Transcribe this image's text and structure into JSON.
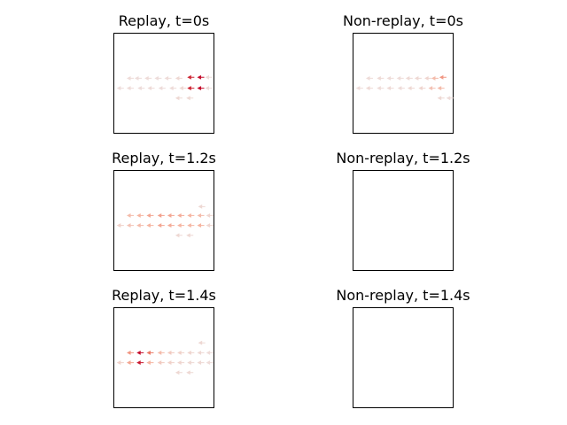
{
  "chart_data": [
    {
      "type": "scatter",
      "title": "Replay, t=0s",
      "marker": "small arrow",
      "colormap": "white-to-red by intensity",
      "xlabel": "",
      "ylabel": "",
      "xlim": [
        0,
        1
      ],
      "ylim": [
        0,
        1
      ],
      "grid": false,
      "points": [
        {
          "x": 0.17,
          "y": 0.55,
          "v": 0.08
        },
        {
          "x": 0.25,
          "y": 0.55,
          "v": 0.07
        },
        {
          "x": 0.35,
          "y": 0.55,
          "v": 0.08
        },
        {
          "x": 0.45,
          "y": 0.55,
          "v": 0.07
        },
        {
          "x": 0.55,
          "y": 0.55,
          "v": 0.08
        },
        {
          "x": 0.66,
          "y": 0.55,
          "v": 0.1
        },
        {
          "x": 0.78,
          "y": 0.56,
          "v": 0.85
        },
        {
          "x": 0.88,
          "y": 0.56,
          "v": 0.95
        },
        {
          "x": 0.07,
          "y": 0.45,
          "v": 0.07
        },
        {
          "x": 0.17,
          "y": 0.45,
          "v": 0.08
        },
        {
          "x": 0.28,
          "y": 0.45,
          "v": 0.07
        },
        {
          "x": 0.38,
          "y": 0.45,
          "v": 0.08
        },
        {
          "x": 0.49,
          "y": 0.45,
          "v": 0.07
        },
        {
          "x": 0.6,
          "y": 0.45,
          "v": 0.08
        },
        {
          "x": 0.7,
          "y": 0.45,
          "v": 0.1
        },
        {
          "x": 0.78,
          "y": 0.45,
          "v": 0.85
        },
        {
          "x": 0.88,
          "y": 0.45,
          "v": 0.95
        },
        {
          "x": 0.96,
          "y": 0.56,
          "v": 0.08
        },
        {
          "x": 0.96,
          "y": 0.45,
          "v": 0.08
        },
        {
          "x": 0.66,
          "y": 0.35,
          "v": 0.1
        },
        {
          "x": 0.77,
          "y": 0.35,
          "v": 0.1
        }
      ]
    },
    {
      "type": "scatter",
      "title": "Non-replay, t=0s",
      "marker": "small arrow",
      "colormap": "white-to-red by intensity",
      "xlabel": "",
      "ylabel": "",
      "xlim": [
        0,
        1
      ],
      "ylim": [
        0,
        1
      ],
      "grid": false,
      "points": [
        {
          "x": 0.17,
          "y": 0.55,
          "v": 0.08
        },
        {
          "x": 0.28,
          "y": 0.55,
          "v": 0.09
        },
        {
          "x": 0.38,
          "y": 0.55,
          "v": 0.08
        },
        {
          "x": 0.48,
          "y": 0.55,
          "v": 0.08
        },
        {
          "x": 0.57,
          "y": 0.55,
          "v": 0.09
        },
        {
          "x": 0.66,
          "y": 0.55,
          "v": 0.1
        },
        {
          "x": 0.76,
          "y": 0.55,
          "v": 0.12
        },
        {
          "x": 0.83,
          "y": 0.55,
          "v": 0.3
        },
        {
          "x": 0.91,
          "y": 0.56,
          "v": 0.45
        },
        {
          "x": 0.07,
          "y": 0.45,
          "v": 0.08
        },
        {
          "x": 0.17,
          "y": 0.45,
          "v": 0.09
        },
        {
          "x": 0.28,
          "y": 0.45,
          "v": 0.08
        },
        {
          "x": 0.38,
          "y": 0.45,
          "v": 0.09
        },
        {
          "x": 0.49,
          "y": 0.45,
          "v": 0.08
        },
        {
          "x": 0.59,
          "y": 0.45,
          "v": 0.1
        },
        {
          "x": 0.7,
          "y": 0.45,
          "v": 0.12
        },
        {
          "x": 0.8,
          "y": 0.45,
          "v": 0.25
        },
        {
          "x": 0.89,
          "y": 0.45,
          "v": 0.3
        },
        {
          "x": 0.89,
          "y": 0.35,
          "v": 0.1
        },
        {
          "x": 0.98,
          "y": 0.35,
          "v": 0.08
        }
      ]
    },
    {
      "type": "scatter",
      "title": "Replay, t=1.2s",
      "marker": "small arrow",
      "colormap": "white-to-red by intensity",
      "xlabel": "",
      "ylabel": "",
      "xlim": [
        0,
        1
      ],
      "ylim": [
        0,
        1
      ],
      "grid": false,
      "points": [
        {
          "x": 0.89,
          "y": 0.64,
          "v": 0.1
        },
        {
          "x": 0.17,
          "y": 0.55,
          "v": 0.3
        },
        {
          "x": 0.27,
          "y": 0.55,
          "v": 0.35
        },
        {
          "x": 0.37,
          "y": 0.55,
          "v": 0.4
        },
        {
          "x": 0.48,
          "y": 0.55,
          "v": 0.42
        },
        {
          "x": 0.58,
          "y": 0.55,
          "v": 0.4
        },
        {
          "x": 0.68,
          "y": 0.55,
          "v": 0.38
        },
        {
          "x": 0.78,
          "y": 0.55,
          "v": 0.35
        },
        {
          "x": 0.88,
          "y": 0.55,
          "v": 0.3
        },
        {
          "x": 0.97,
          "y": 0.55,
          "v": 0.12
        },
        {
          "x": 0.07,
          "y": 0.45,
          "v": 0.15
        },
        {
          "x": 0.17,
          "y": 0.45,
          "v": 0.25
        },
        {
          "x": 0.27,
          "y": 0.45,
          "v": 0.3
        },
        {
          "x": 0.37,
          "y": 0.45,
          "v": 0.35
        },
        {
          "x": 0.48,
          "y": 0.45,
          "v": 0.4
        },
        {
          "x": 0.58,
          "y": 0.45,
          "v": 0.38
        },
        {
          "x": 0.68,
          "y": 0.45,
          "v": 0.35
        },
        {
          "x": 0.78,
          "y": 0.45,
          "v": 0.33
        },
        {
          "x": 0.88,
          "y": 0.45,
          "v": 0.35
        },
        {
          "x": 0.97,
          "y": 0.45,
          "v": 0.12
        },
        {
          "x": 0.66,
          "y": 0.35,
          "v": 0.1
        },
        {
          "x": 0.77,
          "y": 0.35,
          "v": 0.1
        }
      ]
    },
    {
      "type": "scatter",
      "title": "Non-replay, t=1.2s",
      "xlabel": "",
      "ylabel": "",
      "xlim": [
        0,
        1
      ],
      "ylim": [
        0,
        1
      ],
      "grid": false,
      "points": []
    },
    {
      "type": "scatter",
      "title": "Replay, t=1.4s",
      "marker": "small arrow",
      "colormap": "white-to-red by intensity",
      "xlabel": "",
      "ylabel": "",
      "xlim": [
        0,
        1
      ],
      "ylim": [
        0,
        1
      ],
      "grid": false,
      "points": [
        {
          "x": 0.89,
          "y": 0.65,
          "v": 0.1
        },
        {
          "x": 0.17,
          "y": 0.55,
          "v": 0.45
        },
        {
          "x": 0.27,
          "y": 0.55,
          "v": 0.95
        },
        {
          "x": 0.37,
          "y": 0.55,
          "v": 0.55
        },
        {
          "x": 0.48,
          "y": 0.55,
          "v": 0.3
        },
        {
          "x": 0.58,
          "y": 0.55,
          "v": 0.2
        },
        {
          "x": 0.68,
          "y": 0.55,
          "v": 0.15
        },
        {
          "x": 0.78,
          "y": 0.55,
          "v": 0.12
        },
        {
          "x": 0.88,
          "y": 0.55,
          "v": 0.1
        },
        {
          "x": 0.97,
          "y": 0.55,
          "v": 0.08
        },
        {
          "x": 0.07,
          "y": 0.45,
          "v": 0.15
        },
        {
          "x": 0.17,
          "y": 0.45,
          "v": 0.4
        },
        {
          "x": 0.27,
          "y": 0.45,
          "v": 0.9
        },
        {
          "x": 0.37,
          "y": 0.45,
          "v": 0.35
        },
        {
          "x": 0.48,
          "y": 0.45,
          "v": 0.2
        },
        {
          "x": 0.58,
          "y": 0.45,
          "v": 0.15
        },
        {
          "x": 0.68,
          "y": 0.45,
          "v": 0.12
        },
        {
          "x": 0.78,
          "y": 0.45,
          "v": 0.1
        },
        {
          "x": 0.88,
          "y": 0.45,
          "v": 0.1
        },
        {
          "x": 0.97,
          "y": 0.45,
          "v": 0.08
        },
        {
          "x": 0.66,
          "y": 0.35,
          "v": 0.1
        },
        {
          "x": 0.77,
          "y": 0.35,
          "v": 0.1
        }
      ]
    },
    {
      "type": "scatter",
      "title": "Non-replay, t=1.4s",
      "xlabel": "",
      "ylabel": "",
      "xlim": [
        0,
        1
      ],
      "ylim": [
        0,
        1
      ],
      "grid": false,
      "points": []
    }
  ]
}
